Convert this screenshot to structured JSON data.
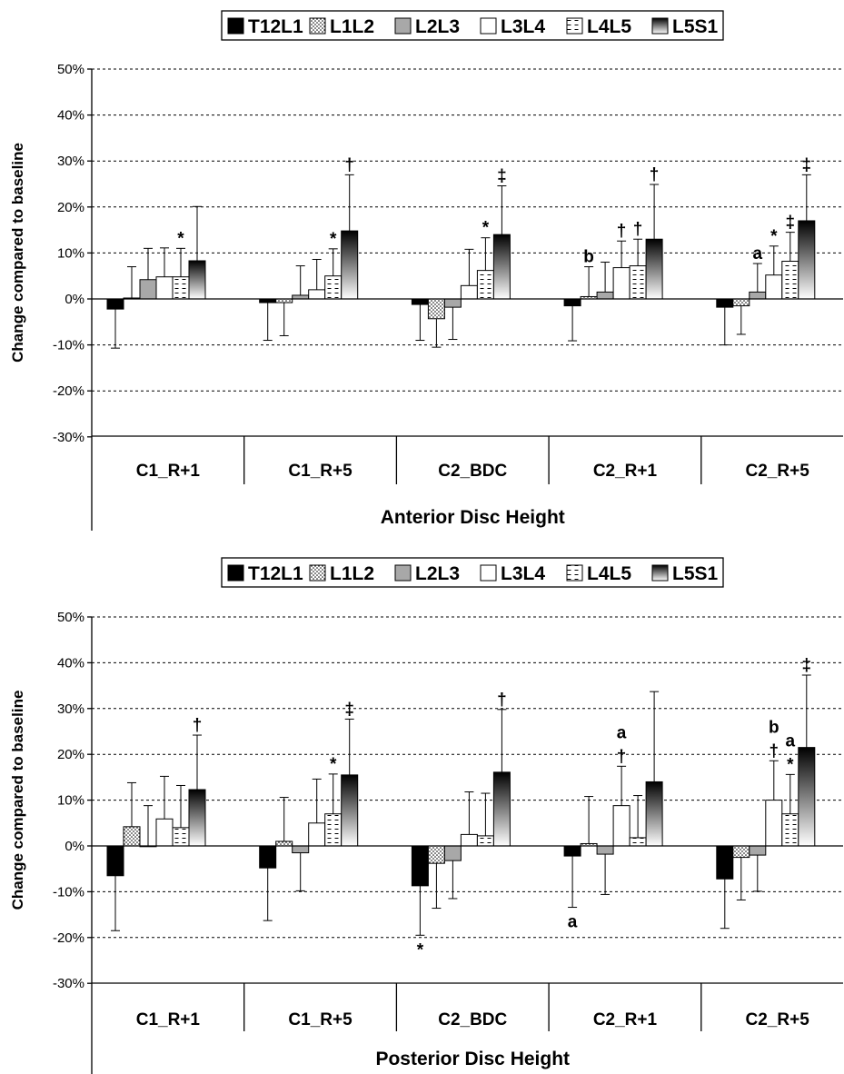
{
  "chart_data": [
    {
      "type": "bar",
      "title": "",
      "xlabel": "Anterior Disc Height",
      "ylabel": "Change compared to baseline",
      "ylim": [
        -30,
        50
      ],
      "yticks": [
        "50%",
        "40%",
        "30%",
        "20%",
        "10%",
        "0%",
        "-10%",
        "-20%",
        "-30%"
      ],
      "grid": true,
      "legend": "top-center",
      "categories": [
        "C1_R+1",
        "C1_R+5",
        "C2_BDC",
        "C2_R+1",
        "C2_R+5"
      ],
      "series": [
        {
          "name": "T12L1",
          "values": [
            -2.2,
            -0.8,
            -1.2,
            -1.5,
            -1.8
          ],
          "error": [
            8.5,
            8.2,
            7.8,
            7.6,
            8.2
          ]
        },
        {
          "name": "L1L2",
          "values": [
            0.2,
            -0.8,
            -4.3,
            0.5,
            -1.5
          ],
          "error": [
            6.8,
            7.2,
            6.2,
            6.5,
            6.2
          ]
        },
        {
          "name": "L2L3",
          "values": [
            4.2,
            0.8,
            -1.8,
            1.5,
            1.5
          ],
          "error": [
            6.8,
            6.4,
            7.0,
            6.5,
            6.2
          ]
        },
        {
          "name": "L3L4",
          "values": [
            4.8,
            2.0,
            2.9,
            6.8,
            5.2
          ],
          "error": [
            6.3,
            6.6,
            7.9,
            5.8,
            6.3
          ]
        },
        {
          "name": "L4L5",
          "values": [
            4.8,
            5.0,
            6.2,
            7.2,
            8.2
          ],
          "error": [
            6.2,
            5.9,
            7.1,
            5.8,
            6.3
          ]
        },
        {
          "name": "L5S1",
          "values": [
            8.3,
            14.8,
            14.0,
            13.0,
            17.0
          ],
          "error": [
            11.8,
            12.2,
            10.6,
            11.9,
            10.0
          ]
        }
      ],
      "annotations": [
        {
          "category": "C1_R+1",
          "series": "L4L5",
          "text": "*"
        },
        {
          "category": "C1_R+5",
          "series": "L4L5",
          "text": "*"
        },
        {
          "category": "C1_R+5",
          "series": "L5S1",
          "text": "†"
        },
        {
          "category": "C2_BDC",
          "series": "L4L5",
          "text": "*"
        },
        {
          "category": "C2_BDC",
          "series": "L5S1",
          "text": "‡"
        },
        {
          "category": "C2_R+1",
          "series": "L1L2",
          "text": "b"
        },
        {
          "category": "C2_R+1",
          "series": "L3L4",
          "text": "†"
        },
        {
          "category": "C2_R+1",
          "series": "L4L5",
          "text": "†"
        },
        {
          "category": "C2_R+1",
          "series": "L5S1",
          "text": "†"
        },
        {
          "category": "C2_R+5",
          "series": "L2L3",
          "text": "a"
        },
        {
          "category": "C2_R+5",
          "series": "L3L4",
          "text": "*"
        },
        {
          "category": "C2_R+5",
          "series": "L4L5",
          "text": "‡"
        },
        {
          "category": "C2_R+5",
          "series": "L5S1",
          "text": "‡"
        }
      ]
    },
    {
      "type": "bar",
      "title": "",
      "xlabel": "Posterior Disc Height",
      "ylabel": "Change compared to baseline",
      "ylim": [
        -30,
        50
      ],
      "yticks": [
        "50%",
        "40%",
        "30%",
        "20%",
        "10%",
        "0%",
        "-10%",
        "-20%",
        "-30%"
      ],
      "grid": true,
      "legend": "top-center",
      "categories": [
        "C1_R+1",
        "C1_R+5",
        "C2_BDC",
        "C2_R+1",
        "C2_R+5"
      ],
      "series": [
        {
          "name": "T12L1",
          "values": [
            -6.5,
            -4.8,
            -8.7,
            -2.2,
            -7.2
          ],
          "error": [
            12.0,
            11.5,
            10.8,
            11.2,
            10.8
          ]
        },
        {
          "name": "L1L2",
          "values": [
            4.2,
            1.0,
            -3.8,
            0.5,
            -2.5
          ],
          "error": [
            9.6,
            9.6,
            9.8,
            10.3,
            9.3
          ]
        },
        {
          "name": "L2L3",
          "values": [
            0.0,
            -1.5,
            -3.2,
            -1.8,
            -2.0
          ],
          "error": [
            8.8,
            8.3,
            8.3,
            8.8,
            7.9
          ]
        },
        {
          "name": "L3L4",
          "values": [
            5.9,
            5.0,
            2.5,
            8.8,
            10.0
          ],
          "error": [
            9.3,
            9.6,
            9.3,
            8.6,
            8.6
          ]
        },
        {
          "name": "L4L5",
          "values": [
            4.0,
            7.0,
            2.2,
            1.8,
            7.0
          ],
          "error": [
            9.2,
            8.7,
            9.3,
            9.2,
            8.6
          ]
        },
        {
          "name": "L5S1",
          "values": [
            12.3,
            15.5,
            16.1,
            14.0,
            21.5
          ],
          "error": [
            11.9,
            12.2,
            13.7,
            19.7,
            15.8
          ]
        }
      ],
      "annotations": [
        {
          "category": "C1_R+1",
          "series": "L5S1",
          "text": "†"
        },
        {
          "category": "C1_R+5",
          "series": "L4L5",
          "text": "*"
        },
        {
          "category": "C1_R+5",
          "series": "L5S1",
          "text": "‡"
        },
        {
          "category": "C2_BDC",
          "series": "T12L1",
          "text": "*"
        },
        {
          "category": "C2_BDC",
          "series": "L5S1",
          "text": "†"
        },
        {
          "category": "C2_R+1",
          "series": "T12L1",
          "text": "a"
        },
        {
          "category": "C2_R+1",
          "series": "L3L4",
          "text": "a"
        },
        {
          "category": "C2_R+1",
          "series": "L3L4",
          "text": "†"
        },
        {
          "category": "C2_R+5",
          "series": "L3L4",
          "text": "b"
        },
        {
          "category": "C2_R+5",
          "series": "L3L4",
          "text": "†"
        },
        {
          "category": "C2_R+5",
          "series": "L4L5",
          "text": "a"
        },
        {
          "category": "C2_R+5",
          "series": "L4L5",
          "text": "*"
        },
        {
          "category": "C2_R+5",
          "series": "L5S1",
          "text": "‡"
        }
      ]
    }
  ]
}
